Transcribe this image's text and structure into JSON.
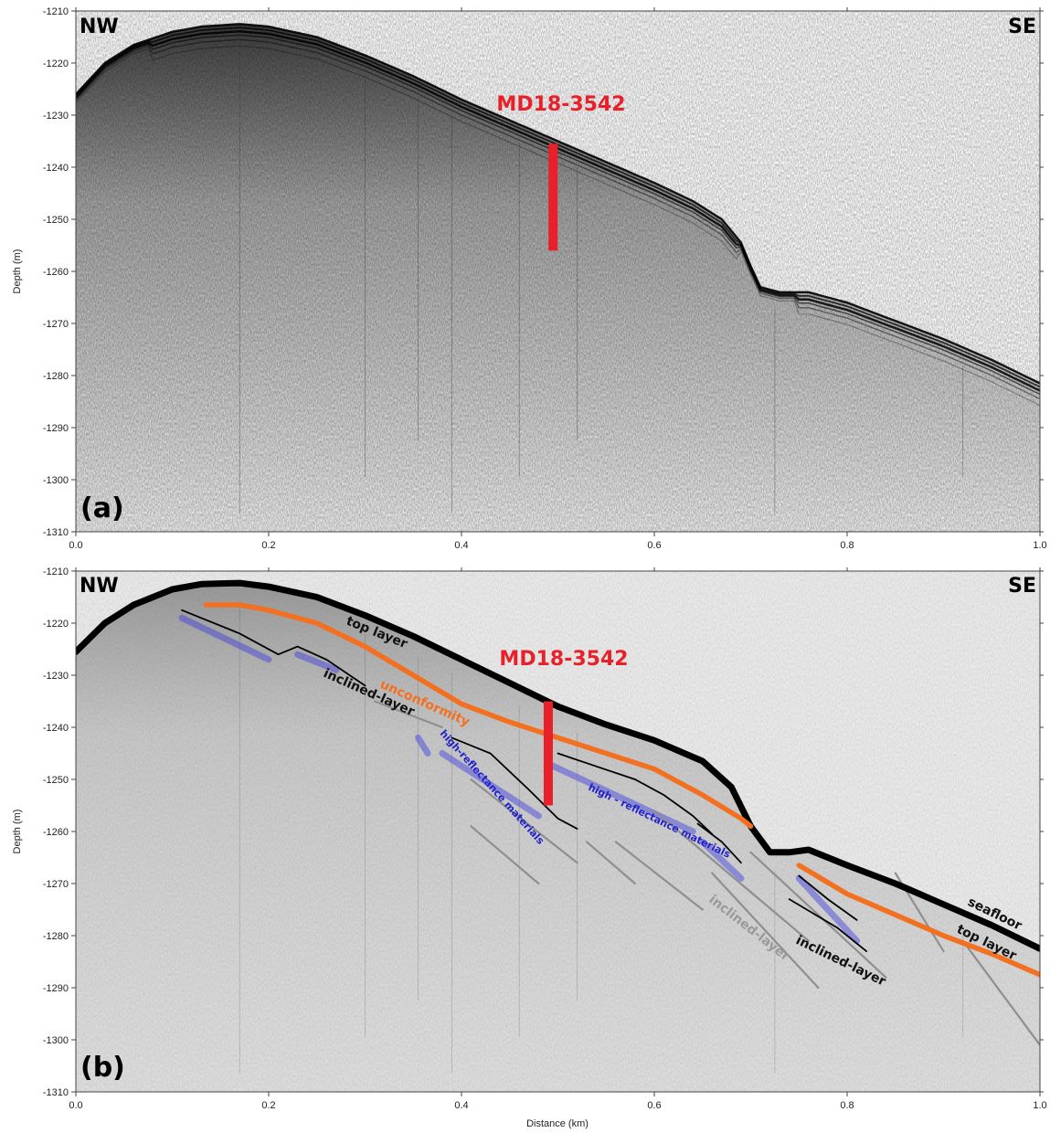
{
  "chart_data": [
    {
      "panel": "(a)",
      "type": "line",
      "title": "",
      "xlabel": "",
      "ylabel": "Depth (m)",
      "xlim": [
        0.0,
        1.0
      ],
      "ylim": [
        -1310,
        -1210
      ],
      "x_ticks": [
        "0.0",
        "0.2",
        "0.4",
        "0.6",
        "0.8",
        "1.0"
      ],
      "y_ticks": [
        "-1210",
        "-1220",
        "-1230",
        "-1240",
        "-1250",
        "-1260",
        "-1270",
        "-1280",
        "-1290",
        "-1300",
        "-1310"
      ],
      "corner_left": "NW",
      "corner_right": "SE",
      "core": {
        "label": "MD18-3542",
        "x": 0.495,
        "y_top": -1235.5,
        "y_bottom": -1256
      },
      "series": [
        {
          "x": [
            0.0,
            0.03,
            0.06,
            0.1,
            0.13,
            0.17,
            0.2,
            0.25,
            0.3,
            0.35,
            0.4,
            0.45,
            0.5,
            0.55,
            0.6,
            0.64,
            0.67,
            0.69,
            0.7,
            0.71,
            0.73,
            0.76,
            0.8,
            0.85,
            0.9,
            0.95,
            1.0
          ],
          "y": [
            -1226,
            -1220,
            -1216.5,
            -1214,
            -1213,
            -1212.5,
            -1213,
            -1215,
            -1218.5,
            -1222.5,
            -1227,
            -1231,
            -1235,
            -1239,
            -1243,
            -1246.5,
            -1250,
            -1254.5,
            -1259,
            -1263,
            -1264,
            -1264,
            -1266,
            -1269.5,
            -1273,
            -1277,
            -1281.5
          ]
        }
      ]
    },
    {
      "panel": "(b)",
      "type": "line",
      "title": "",
      "xlabel": "Distance (km)",
      "ylabel": "Depth (m)",
      "xlim": [
        0.0,
        1.0
      ],
      "ylim": [
        -1310,
        -1210
      ],
      "x_ticks": [
        "0.0",
        "0.2",
        "0.4",
        "0.6",
        "0.8",
        "1.0"
      ],
      "y_ticks": [
        "-1210",
        "-1220",
        "-1230",
        "-1240",
        "-1250",
        "-1260",
        "-1270",
        "-1280",
        "-1290",
        "-1300",
        "-1310"
      ],
      "corner_left": "NW",
      "corner_right": "SE",
      "core": {
        "label": "MD18-3542",
        "x": 0.49,
        "y_top": -1235,
        "y_bottom": -1255
      },
      "annotations": {
        "top_layer_1": "top layer",
        "top_layer_2": "top layer",
        "seafloor": "seafloor",
        "unconformity": "unconformity",
        "inclined_layer_1": "inclined-layer",
        "inclined_layer_2": "inclined-layer",
        "inclined_layer_3": "inclined-layer",
        "high_reflectance_1": "high-reflectance materials",
        "high_reflectance_2": "high - reflectance   materials"
      },
      "series": [
        {
          "name": "seafloor",
          "color": "#000000",
          "x": [
            0.0,
            0.03,
            0.06,
            0.1,
            0.13,
            0.17,
            0.2,
            0.25,
            0.3,
            0.35,
            0.4,
            0.45,
            0.5,
            0.55,
            0.6,
            0.65,
            0.68,
            0.7,
            0.72,
            0.74,
            0.76,
            0.8,
            0.85,
            0.9,
            0.95,
            1.0
          ],
          "y": [
            -1225.5,
            -1220,
            -1216.5,
            -1213.5,
            -1212.5,
            -1212.3,
            -1213,
            -1215,
            -1218.5,
            -1222.5,
            -1227,
            -1231.5,
            -1236,
            -1239.5,
            -1242.5,
            -1246.5,
            -1251.5,
            -1259,
            -1264,
            -1264,
            -1263.5,
            -1266.5,
            -1270,
            -1274,
            -1278,
            -1282.5
          ]
        },
        {
          "name": "top layer",
          "color": "#f37021",
          "x": [
            0.135,
            0.17,
            0.2,
            0.25,
            0.3,
            0.35,
            0.4,
            0.45,
            0.5,
            0.55,
            0.6,
            0.65,
            0.69,
            0.7
          ],
          "y": [
            -1216.5,
            -1216.5,
            -1217.5,
            -1220,
            -1224.5,
            -1230,
            -1235.5,
            -1239,
            -1242,
            -1245,
            -1248,
            -1253,
            -1257.5,
            -1259
          ]
        },
        {
          "name": "top layer",
          "color": "#f37021",
          "x": [
            0.75,
            0.8,
            0.85,
            0.9,
            0.95,
            1.0
          ],
          "y": [
            -1266.5,
            -1272,
            -1276,
            -1280,
            -1283.5,
            -1287.5
          ]
        }
      ]
    }
  ]
}
